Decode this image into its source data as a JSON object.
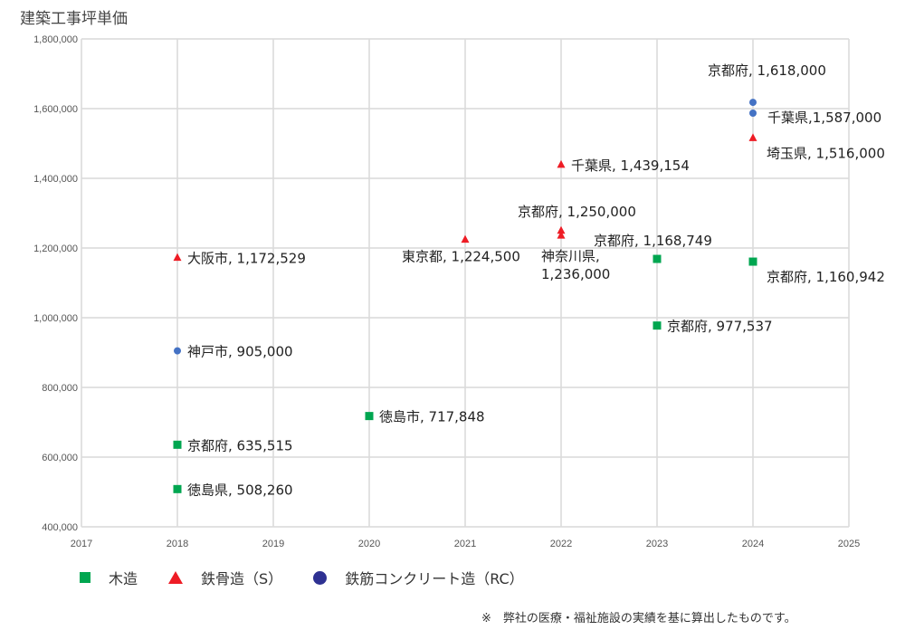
{
  "chart_data": {
    "type": "scatter",
    "title": "建築工事坪単価",
    "xlabel": "",
    "ylabel": "",
    "xlim": [
      2017,
      2025
    ],
    "ylim": [
      400000,
      1800000
    ],
    "x_ticks": [
      "2017",
      "2018",
      "2019",
      "2020",
      "2021",
      "2022",
      "2023",
      "2024",
      "2025"
    ],
    "y_ticks": [
      "400,000",
      "600,000",
      "800,000",
      "1,000,000",
      "1,200,000",
      "1,400,000",
      "1,600,000",
      "1,800,000"
    ],
    "grid": true,
    "legend_position": "bottom-left",
    "series": [
      {
        "name": "木造",
        "marker": "square",
        "color": "#00a650",
        "points": [
          {
            "x": 2018,
            "y": 635515,
            "label": "京都府, 635,515"
          },
          {
            "x": 2018,
            "y": 508260,
            "label": "徳島県, 508,260"
          },
          {
            "x": 2020,
            "y": 717848,
            "label": "徳島市, 717,848"
          },
          {
            "x": 2023,
            "y": 1168749,
            "label": "京都府, 1,168,749"
          },
          {
            "x": 2023,
            "y": 977537,
            "label": "京都府, 977,537"
          },
          {
            "x": 2024,
            "y": 1160942,
            "label": "京都府, 1,160,942"
          }
        ]
      },
      {
        "name": "鉄骨造（S）",
        "marker": "triangle",
        "color": "#ee1c25",
        "points": [
          {
            "x": 2018,
            "y": 1172529,
            "label": "大阪市, 1,172,529"
          },
          {
            "x": 2021,
            "y": 1224500,
            "label": "東京都, 1,224,500"
          },
          {
            "x": 2022,
            "y": 1250000,
            "label": "京都府, 1,250,000"
          },
          {
            "x": 2022,
            "y": 1236000,
            "label": "神奈川県, 1,236,000"
          },
          {
            "x": 2022,
            "y": 1439154,
            "label": "千葉県, 1,439,154"
          },
          {
            "x": 2024,
            "y": 1516000,
            "label": "埼玉県, 1,516,000"
          }
        ]
      },
      {
        "name": "鉄筋コンクリート造（RC）",
        "marker": "circle",
        "color": "#4472c4",
        "legend_color": "#2e3192",
        "points": [
          {
            "x": 2018,
            "y": 905000,
            "label": "神戸市, 905,000"
          },
          {
            "x": 2024,
            "y": 1618000,
            "label": "京都府, 1,618,000"
          },
          {
            "x": 2024,
            "y": 1587000,
            "label": "千葉県,1,587,000"
          }
        ]
      }
    ]
  },
  "note": "※　弊社の医療・福祉施設の実績を基に算出したものです。"
}
